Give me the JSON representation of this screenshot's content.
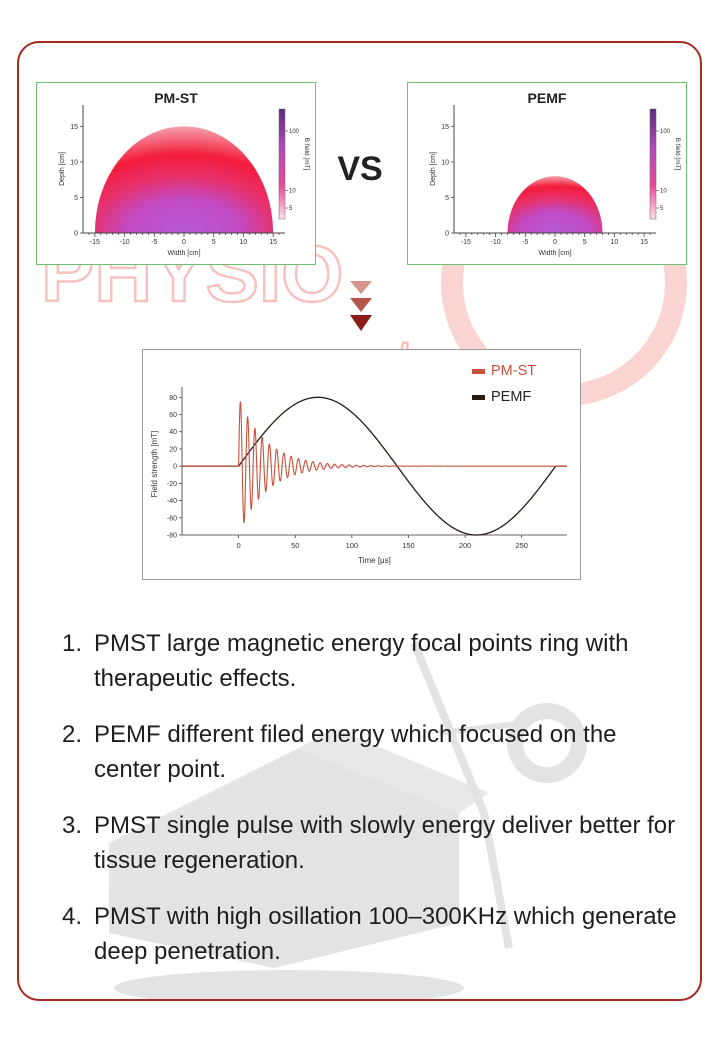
{
  "watermark": {
    "brand_top": "PHYSIO",
    "brand_bottom": "magneto",
    "color": "#e8413a"
  },
  "comparison": {
    "vs_label": "VS"
  },
  "chart_data": [
    {
      "type": "heatmap",
      "title": "PM-ST",
      "xlabel": "Width [cm]",
      "ylabel": "Depth [cm]",
      "colorbar_label": "B field [mT]",
      "colorbar_ticks": [
        "100",
        "10",
        "5"
      ],
      "xticks": [
        "-15",
        "-10",
        "-5",
        "0",
        "5",
        "10",
        "15"
      ],
      "yticks": [
        "0",
        "5",
        "10",
        "15"
      ],
      "xlim": [
        -17,
        17
      ],
      "ylim": [
        0,
        18
      ],
      "field_radius_cm": 15,
      "core_radius_cm": 8
    },
    {
      "type": "heatmap",
      "title": "PEMF",
      "xlabel": "Width [cm]",
      "ylabel": "Depth [cm]",
      "colorbar_label": "B field [mT]",
      "colorbar_ticks": [
        "100",
        "10",
        "5"
      ],
      "xticks": [
        "-15",
        "-10",
        "-5",
        "0",
        "5",
        "10",
        "15"
      ],
      "yticks": [
        "0",
        "5",
        "10",
        "15"
      ],
      "xlim": [
        -17,
        17
      ],
      "ylim": [
        0,
        18
      ],
      "field_radius_cm": 8,
      "core_radius_cm": 5
    },
    {
      "type": "line",
      "xlabel": "Time [μs]",
      "ylabel": "Field strength [mT]",
      "xlim": [
        -50,
        290
      ],
      "ylim": [
        -80,
        85
      ],
      "xticks": [
        0,
        50,
        100,
        150,
        200,
        250
      ],
      "yticks": [
        80,
        60,
        40,
        20,
        0,
        -20,
        -40,
        -60,
        -80
      ],
      "legend_position": "top-right",
      "series": [
        {
          "name": "PM-ST",
          "color": "#c9513a",
          "model": "damped_oscillation",
          "start": 0,
          "amplitude": 80,
          "period": 6.4,
          "decay_time": 24,
          "end": 290
        },
        {
          "name": "PEMF",
          "color": "#2b1a14",
          "model": "single_sine_cycle",
          "start": 0,
          "amplitude": 80,
          "period": 280,
          "end": 290,
          "peak": {
            "x": 70,
            "y": 80
          },
          "trough": {
            "x": 210,
            "y": -80
          }
        }
      ]
    }
  ],
  "notes": [
    {
      "num": "1.",
      "text": "PMST  large magnetic energy focal points ring with therapeutic effects."
    },
    {
      "num": "2.",
      "text": "PEMF different filed energy which focused on the center point."
    },
    {
      "num": "3.",
      "text": "PMST single pulse with slowly energy deliver better for tissue regeneration."
    },
    {
      "num": "4.",
      "text": "PMST with high osillation 100–300KHz which generate deep penetration."
    }
  ],
  "colors": {
    "frame": "#a32b20",
    "arrow_light": "#d8968a",
    "arrow_mid": "#b45648",
    "arrow_dark": "#8a1e14",
    "heat_red": "#f01c3c",
    "heat_magenta": "#c844c8"
  }
}
